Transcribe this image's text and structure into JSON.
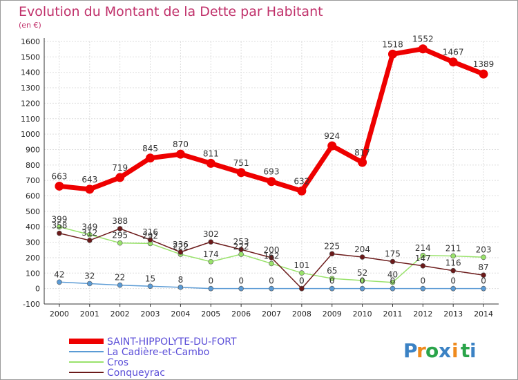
{
  "chart_data": {
    "type": "line",
    "title": "Evolution du Montant de la Dette par Habitant",
    "subtitle": "(en €)",
    "x": [
      "2000",
      "2001",
      "2002",
      "2003",
      "2004",
      "2005",
      "2006",
      "2007",
      "2008",
      "2009",
      "2010",
      "2011",
      "2012",
      "2013",
      "2014"
    ],
    "ylim": [
      -100,
      1600
    ],
    "yticks": [
      -100,
      0,
      100,
      200,
      300,
      400,
      500,
      600,
      700,
      800,
      900,
      1000,
      1100,
      1200,
      1300,
      1400,
      1500,
      1600
    ],
    "grid": true,
    "legend_position": "bottom-left",
    "series": [
      {
        "name": "SAINT-HIPPOLYTE-DU-FORT",
        "color": "#ee0000",
        "values": [
          663,
          643,
          719,
          845,
          870,
          811,
          751,
          693,
          632,
          924,
          817,
          1518,
          1552,
          1467,
          1389
        ],
        "labels": [
          "663",
          "643",
          "719",
          "845",
          "870",
          "811",
          "751",
          "693",
          "632",
          "924",
          "817",
          "1518",
          "1552",
          "1467",
          "1389"
        ]
      },
      {
        "name": "La Cadière-et-Cambo",
        "color": "#5b9bd5",
        "values": [
          42,
          32,
          22,
          15,
          8,
          0,
          0,
          0,
          0,
          0,
          0,
          0,
          0,
          0,
          0
        ],
        "labels": [
          "42",
          "32",
          "22",
          "15",
          "8",
          "0",
          "0",
          "0",
          "0",
          "0",
          "0",
          "0",
          "0",
          "0",
          "0"
        ]
      },
      {
        "name": "Cros",
        "color": "#99e26b",
        "values": [
          399,
          349,
          295,
          292,
          222,
          174,
          222,
          162,
          101,
          65,
          52,
          40,
          214,
          211,
          203
        ],
        "labels": [
          "399",
          "349",
          "295",
          "292",
          "222",
          "174",
          "222",
          "162",
          "101",
          "65",
          "52",
          "40",
          "214",
          "211",
          "203"
        ]
      },
      {
        "name": "Conqueyrac",
        "color": "#6b1a1a",
        "values": [
          358,
          312,
          388,
          316,
          236,
          302,
          253,
          200,
          0,
          225,
          204,
          175,
          147,
          116,
          87
        ],
        "labels": [
          "358",
          "312",
          "388",
          "316",
          "236",
          "302",
          "253",
          "200",
          "0",
          "225",
          "204",
          "175",
          "147",
          "116",
          "87"
        ]
      }
    ]
  },
  "logo": {
    "letters": [
      "P",
      "r",
      "o",
      "x",
      "i",
      "t",
      "i"
    ]
  }
}
